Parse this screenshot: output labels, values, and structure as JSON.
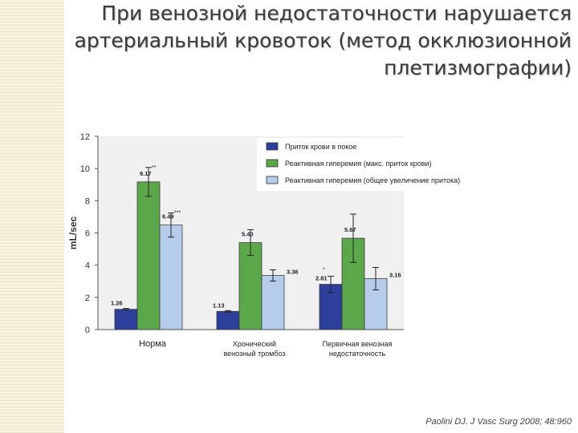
{
  "title_lines": [
    "При венозной недостаточности нарушается",
    "артериальный кровоток (метод окклюзионной",
    "плетизмографии)"
  ],
  "citation": "Paolini DJ. J Vasc Surg 2008; 48:960",
  "chart_data": {
    "type": "bar",
    "ylabel": "mL/sec",
    "ylim": [
      0,
      12
    ],
    "yticks": [
      0,
      2,
      4,
      6,
      8,
      10,
      12
    ],
    "categories": [
      [
        "Норма"
      ],
      [
        "Хронический",
        "венозный тромбоз"
      ],
      [
        "Первичная венозная",
        "недостаточность"
      ]
    ],
    "series": [
      {
        "name": "Приток крови в покое",
        "color": "#2b3f9b",
        "values": [
          1.26,
          1.13,
          2.81
        ],
        "labels": [
          "1.26",
          "1.13",
          "2.81"
        ],
        "errors": [
          0.05,
          0.05,
          0.5
        ],
        "marks": [
          "",
          "",
          "*"
        ]
      },
      {
        "name": "Реактивная гиперемия (макс. приток крови)",
        "color": "#5aa84a",
        "values": [
          9.17,
          5.4,
          5.67
        ],
        "labels": [
          "9.17",
          "5.40",
          "5.67"
        ],
        "errors": [
          0.9,
          0.8,
          1.5
        ],
        "marks": [
          "**",
          "",
          ""
        ]
      },
      {
        "name": "Реактивная гиперемия (общее увеличение притока)",
        "color": "#b5cdea",
        "values": [
          6.49,
          3.36,
          3.16
        ],
        "labels": [
          "6.49",
          "3.36",
          "3.16"
        ],
        "errors": [
          0.75,
          0.35,
          0.7
        ],
        "marks": [
          "***",
          "",
          ""
        ]
      }
    ]
  }
}
